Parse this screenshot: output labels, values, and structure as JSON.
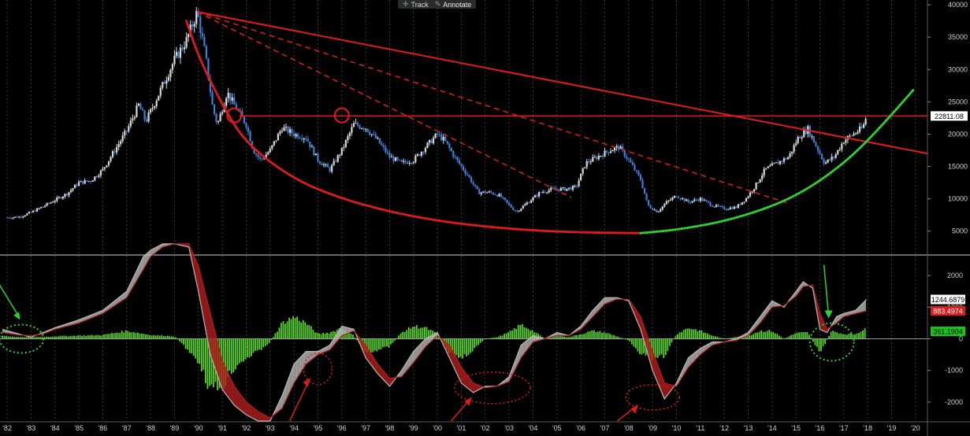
{
  "toolbar": {
    "track_label": "Track",
    "annotate_label": "Annotate",
    "track_icon": "crosshair-icon",
    "annotate_icon": "pencil-icon"
  },
  "colors": {
    "background": "#000000",
    "grid": "#3a3a3a",
    "price_up": "#d8d8d8",
    "price_down": "#3d7fd6",
    "trendline": "#e01b1b",
    "arc_red": "#e01b1b",
    "arc_green": "#2fd12f",
    "histogram": "#5ad12a",
    "macd_line": "#b8b8b8",
    "signal_fill": "#b21e1e",
    "label_white": "#ffffff",
    "label_red": "#e01b1b",
    "label_green": "#18c21d"
  },
  "chart_data": [
    {
      "type": "line",
      "panel": "price",
      "x_label_ticks": [
        "'82",
        "'83",
        "'84",
        "'85",
        "'86",
        "'87",
        "'88",
        "'89",
        "'90",
        "'91",
        "'92",
        "'93",
        "'94",
        "'95",
        "'96",
        "'97",
        "'98",
        "'99",
        "'00",
        "'01",
        "'02",
        "'03",
        "'04",
        "'05",
        "'06",
        "'07",
        "'08",
        "'09",
        "'10",
        "'11",
        "'12",
        "'13",
        "'14",
        "'15",
        "'16",
        "'17",
        "'18",
        "'19",
        "'20"
      ],
      "xlim": [
        1981.7,
        2020.5
      ],
      "ylim": [
        1800,
        40500
      ],
      "y_ticks": [
        5000,
        10000,
        15000,
        20000,
        25000,
        30000,
        35000,
        40000
      ],
      "y_tick_labels": [
        "5000",
        "10000",
        "15000",
        "20000",
        "25000",
        "30000",
        "35000",
        "40000"
      ],
      "grid": "vertical dashed",
      "series": [
        {
          "style": "candles",
          "x": [
            1982.0,
            1982.5,
            1983.0,
            1983.5,
            1984.0,
            1984.5,
            1985.0,
            1985.5,
            1986.0,
            1986.5,
            1987.0,
            1987.5,
            1987.8,
            1988.0,
            1988.5,
            1989.0,
            1989.5,
            1989.95,
            1990.3,
            1990.6,
            1990.8,
            1991.2,
            1991.5,
            1992.0,
            1992.3,
            1992.6,
            1993.0,
            1993.5,
            1994.0,
            1994.5,
            1995.0,
            1995.5,
            1996.0,
            1996.5,
            1997.0,
            1997.5,
            1998.0,
            1998.5,
            1999.0,
            1999.5,
            2000.0,
            2000.3,
            2000.8,
            2001.3,
            2001.7,
            2002.2,
            2002.6,
            2003.0,
            2003.3,
            2003.8,
            2004.3,
            2004.8,
            2005.3,
            2005.8,
            2006.2,
            2006.7,
            2007.2,
            2007.6,
            2008.0,
            2008.5,
            2008.8,
            2009.2,
            2009.6,
            2010.0,
            2010.5,
            2011.0,
            2011.5,
            2012.0,
            2012.5,
            2012.9,
            2013.3,
            2013.7,
            2014.2,
            2014.7,
            2015.1,
            2015.5,
            2015.8,
            2016.2,
            2016.6,
            2017.0,
            2017.4,
            2017.8,
            2017.95
          ],
          "values": [
            7100,
            7200,
            7900,
            8800,
            9800,
            10800,
            12500,
            12800,
            14500,
            17500,
            20500,
            24500,
            22000,
            23500,
            27500,
            31500,
            34500,
            38900,
            32000,
            24000,
            21500,
            26500,
            24500,
            21500,
            17500,
            16000,
            17500,
            21000,
            20000,
            19500,
            16000,
            14500,
            17500,
            21500,
            21000,
            19000,
            16500,
            15500,
            16000,
            18000,
            20000,
            19000,
            16000,
            13500,
            11000,
            11000,
            10500,
            9000,
            8000,
            9500,
            11000,
            11500,
            11500,
            11800,
            15500,
            16500,
            17500,
            18000,
            16000,
            13000,
            9000,
            8000,
            9500,
            10500,
            9500,
            10000,
            9000,
            8500,
            8700,
            10000,
            12000,
            14500,
            15500,
            16500,
            19500,
            20800,
            18500,
            15500,
            16500,
            19000,
            20000,
            21000,
            22811.08
          ]
        },
        {
          "name": "",
          "style": "solid-trendline",
          "x": [
            1989.95,
            2020.5
          ],
          "values": [
            38900,
            17000
          ]
        },
        {
          "name": "",
          "style": "dashed-trendline",
          "x": [
            1989.95,
            2005.6
          ],
          "values": [
            38900,
            10200
          ]
        },
        {
          "name": "",
          "style": "dashed-trendline",
          "x": [
            1989.95,
            2014.6
          ],
          "values": [
            38900,
            9400
          ]
        },
        {
          "name": "",
          "style": "horizontal-line",
          "x": [
            1991.7,
            2020.5
          ],
          "values": [
            22811.08,
            22811.08
          ]
        },
        {
          "name": "",
          "style": "dotted-arc-red",
          "x": [
            1989.5,
            1990.0,
            1991.0,
            1992.0,
            1994.0,
            1996.0,
            1998.0,
            2000.0,
            2002.0,
            2004.0,
            2006.0,
            2008.5
          ],
          "values": [
            37500,
            32000,
            24500,
            18500,
            13000,
            10000,
            8000,
            6600,
            5700,
            5100,
            4800,
            4700
          ]
        },
        {
          "name": "",
          "style": "dotted-arc-green",
          "x": [
            2008.5,
            2010.0,
            2012.0,
            2014.0,
            2015.5,
            2017.0,
            2018.0,
            2019.0,
            2019.9
          ],
          "values": [
            4700,
            5200,
            6500,
            8800,
            11500,
            15500,
            19000,
            23000,
            26800
          ]
        }
      ],
      "circles": [
        {
          "x": 1991.5,
          "y": 22900
        },
        {
          "x": 1996.0,
          "y": 22900
        }
      ],
      "last_value_label": "22811.08"
    },
    {
      "type": "line",
      "panel": "oscillator",
      "xlim": [
        1981.7,
        2020.5
      ],
      "ylim": [
        -2550,
        2550
      ],
      "y_ticks": [
        -2000,
        -1000,
        0,
        1000,
        2000
      ],
      "y_tick_labels": [
        "-2000",
        "-1000",
        "0",
        "1000",
        "2000"
      ],
      "series": [
        {
          "name": "",
          "style": "macd-line",
          "x": [
            1981.8,
            1982.5,
            1983.0,
            1983.5,
            1984.0,
            1985.0,
            1986.0,
            1987.0,
            1987.7,
            1988.0,
            1988.5,
            1989.0,
            1989.6,
            1990.0,
            1990.5,
            1991.0,
            1991.5,
            1992.0,
            1992.5,
            1993.0,
            1993.5,
            1994.0,
            1994.5,
            1995.0,
            1995.5,
            1996.0,
            1996.5,
            1997.0,
            1997.5,
            1998.0,
            1998.5,
            1999.0,
            1999.5,
            2000.0,
            2000.5,
            2001.0,
            2001.5,
            2002.0,
            2002.5,
            2003.0,
            2003.5,
            2004.0,
            2004.5,
            2005.0,
            2005.5,
            2006.0,
            2006.5,
            2007.0,
            2007.5,
            2008.0,
            2008.5,
            2009.0,
            2009.5,
            2010.0,
            2010.5,
            2011.0,
            2011.5,
            2012.0,
            2012.5,
            2013.0,
            2013.5,
            2014.0,
            2014.5,
            2015.0,
            2015.3,
            2015.7,
            2016.0,
            2016.3,
            2016.7,
            2017.0,
            2017.5,
            2017.95
          ],
          "values": [
            300,
            150,
            50,
            200,
            350,
            600,
            900,
            1500,
            2600,
            2800,
            3000,
            3000,
            2900,
            1500,
            -500,
            -1600,
            -2100,
            -2400,
            -2600,
            -2600,
            -1800,
            -800,
            -400,
            -400,
            -200,
            400,
            300,
            -600,
            -1100,
            -1500,
            -1000,
            -400,
            0,
            200,
            -600,
            -1400,
            -1700,
            -1500,
            -1500,
            -1200,
            -200,
            100,
            0,
            200,
            100,
            400,
            900,
            1300,
            1300,
            1200,
            300,
            -1000,
            -1900,
            -1400,
            -600,
            -300,
            -100,
            -100,
            0,
            200,
            700,
            1200,
            1000,
            1500,
            1800,
            1600,
            300,
            200,
            700,
            800,
            900,
            1244.6879
          ]
        },
        {
          "name": "",
          "style": "signal-line",
          "x": [
            1981.8,
            1982.5,
            1983.0,
            1983.5,
            1984.0,
            1985.0,
            1986.0,
            1987.0,
            1987.7,
            1988.0,
            1988.5,
            1989.0,
            1989.6,
            1990.0,
            1990.5,
            1991.0,
            1991.5,
            1992.0,
            1992.5,
            1993.0,
            1993.5,
            1994.0,
            1994.5,
            1995.0,
            1995.5,
            1996.0,
            1996.5,
            1997.0,
            1997.5,
            1998.0,
            1998.5,
            1999.0,
            1999.5,
            2000.0,
            2000.5,
            2001.0,
            2001.5,
            2002.0,
            2002.5,
            2003.0,
            2003.5,
            2004.0,
            2004.5,
            2005.0,
            2005.5,
            2006.0,
            2006.5,
            2007.0,
            2007.5,
            2008.0,
            2008.5,
            2009.0,
            2009.5,
            2010.0,
            2010.5,
            2011.0,
            2011.5,
            2012.0,
            2012.5,
            2013.0,
            2013.5,
            2014.0,
            2014.5,
            2015.0,
            2015.3,
            2015.7,
            2016.0,
            2016.3,
            2016.7,
            2017.0,
            2017.5,
            2017.95
          ],
          "values": [
            200,
            120,
            100,
            150,
            300,
            500,
            800,
            1300,
            2200,
            2600,
            2900,
            3000,
            3000,
            2300,
            800,
            -700,
            -1500,
            -2000,
            -2300,
            -2500,
            -2200,
            -1400,
            -800,
            -500,
            -350,
            100,
            250,
            -200,
            -800,
            -1250,
            -1200,
            -750,
            -250,
            100,
            -200,
            -900,
            -1400,
            -1550,
            -1500,
            -1350,
            -600,
            -100,
            0,
            100,
            100,
            300,
            700,
            1100,
            1250,
            1250,
            700,
            -400,
            -1400,
            -1500,
            -900,
            -500,
            -200,
            -100,
            -50,
            100,
            500,
            1000,
            1050,
            1350,
            1650,
            1700,
            800,
            300,
            500,
            700,
            800,
            883.4974
          ]
        },
        {
          "name": "",
          "style": "histogram",
          "x": [
            1981.8,
            1982.5,
            1983.5,
            1984.0,
            1985.0,
            1986.0,
            1987.0,
            1988.0,
            1989.0,
            1990.0,
            1990.5,
            1991.0,
            1991.5,
            1992.0,
            1992.5,
            1993.0,
            1993.5,
            1994.0,
            1994.5,
            1995.0,
            1995.5,
            1996.0,
            1996.5,
            1997.0,
            1997.5,
            1998.0,
            1998.5,
            1999.0,
            1999.5,
            2000.0,
            2000.5,
            2001.0,
            2001.5,
            2002.0,
            2002.5,
            2003.0,
            2003.5,
            2004.0,
            2004.5,
            2005.0,
            2005.5,
            2006.0,
            2006.5,
            2007.0,
            2007.5,
            2008.0,
            2008.5,
            2009.0,
            2009.5,
            2010.0,
            2010.5,
            2011.0,
            2011.5,
            2012.0,
            2012.5,
            2013.0,
            2013.5,
            2014.0,
            2014.5,
            2015.0,
            2015.5,
            2016.0,
            2016.5,
            2017.0,
            2017.5,
            2017.95
          ],
          "values": [
            100,
            50,
            60,
            80,
            100,
            120,
            250,
            120,
            80,
            -700,
            -1600,
            -1500,
            -900,
            -600,
            -400,
            -100,
            500,
            700,
            500,
            150,
            200,
            350,
            100,
            -450,
            -350,
            -250,
            200,
            400,
            350,
            150,
            -450,
            -600,
            -350,
            0,
            50,
            200,
            450,
            250,
            0,
            100,
            50,
            150,
            250,
            200,
            80,
            -50,
            -450,
            -650,
            -550,
            150,
            350,
            250,
            100,
            0,
            60,
            100,
            250,
            250,
            0,
            180,
            200,
            -450,
            250,
            150,
            150,
            361.1904
          ]
        }
      ],
      "value_labels": [
        "1244.6879",
        "883.4974",
        "361.1904"
      ],
      "green_markers": [
        {
          "x": 1982.6,
          "y": 0
        },
        {
          "x": 2016.5,
          "y": -100
        }
      ],
      "red_markers": [
        {
          "x": 1995.0,
          "y": -950
        },
        {
          "x": 2002.3,
          "y": -1550
        },
        {
          "x": 2009.0,
          "y": -1850
        }
      ]
    }
  ]
}
